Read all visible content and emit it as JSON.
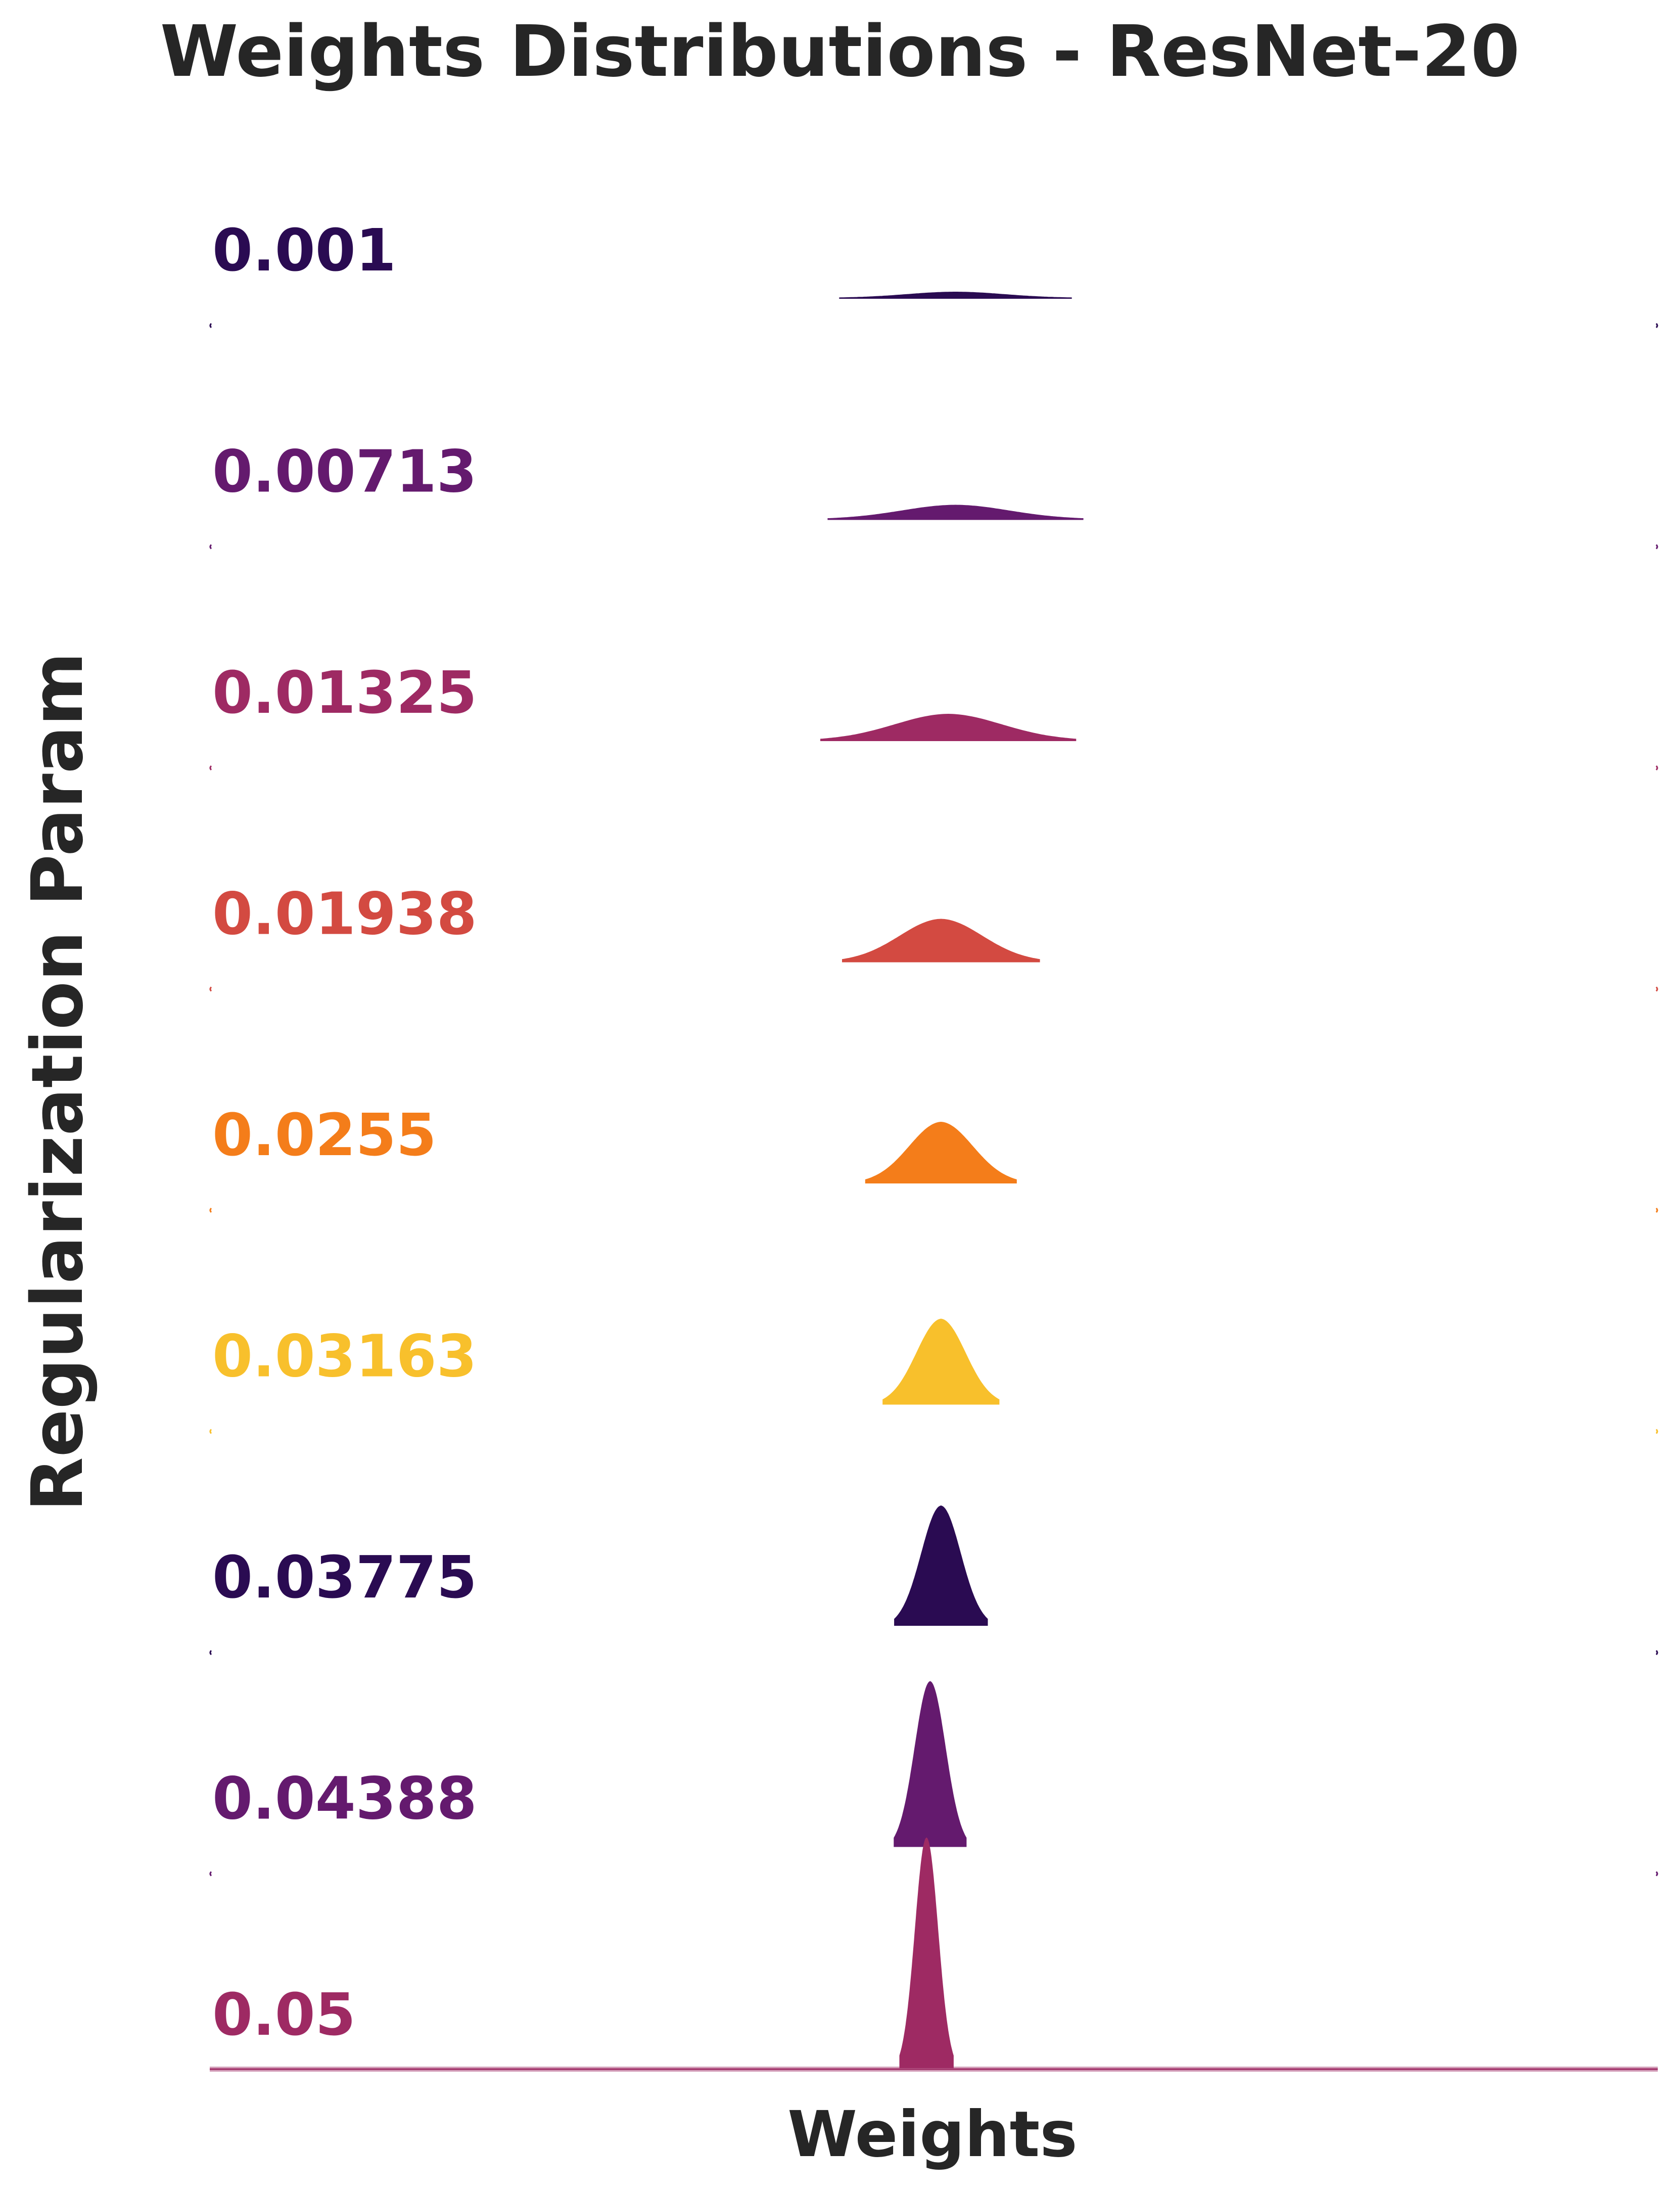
{
  "chart_data": {
    "type": "area",
    "subtype": "ridgeline",
    "title": "Weights Distributions - ResNet-20",
    "xlabel": "Weights",
    "ylabel": "Regularization Param",
    "x_ticks_visible": false,
    "grid": false,
    "legend": "none",
    "series": [
      {
        "name": "0.001",
        "color": "#2a0b52",
        "center": 0.03,
        "spread": 0.1,
        "peak": 0.06
      },
      {
        "name": "0.00713",
        "color": "#641a6e",
        "center": 0.03,
        "spread": 0.11,
        "peak": 0.14
      },
      {
        "name": "0.01325",
        "color": "#9e2a63",
        "center": 0.02,
        "spread": 0.11,
        "peak": 0.26
      },
      {
        "name": "0.01938",
        "color": "#d34a41",
        "center": 0.01,
        "spread": 0.085,
        "peak": 0.42
      },
      {
        "name": "0.0255",
        "color": "#f47d1a",
        "center": 0.01,
        "spread": 0.065,
        "peak": 0.6
      },
      {
        "name": "0.03163",
        "color": "#f8c02c",
        "center": 0.01,
        "spread": 0.05,
        "peak": 0.84
      },
      {
        "name": "0.03775",
        "color": "#2a0b52",
        "center": 0.01,
        "spread": 0.04,
        "peak": 1.18
      },
      {
        "name": "0.04388",
        "color": "#641a6e",
        "center": -0.005,
        "spread": 0.031,
        "peak": 1.63
      },
      {
        "name": "0.05",
        "color": "#9e2a63",
        "center": -0.01,
        "spread": 0.023,
        "peak": 2.27
      }
    ],
    "xlim": [
      -1.0,
      1.0
    ],
    "ylim": [
      0,
      1
    ]
  }
}
